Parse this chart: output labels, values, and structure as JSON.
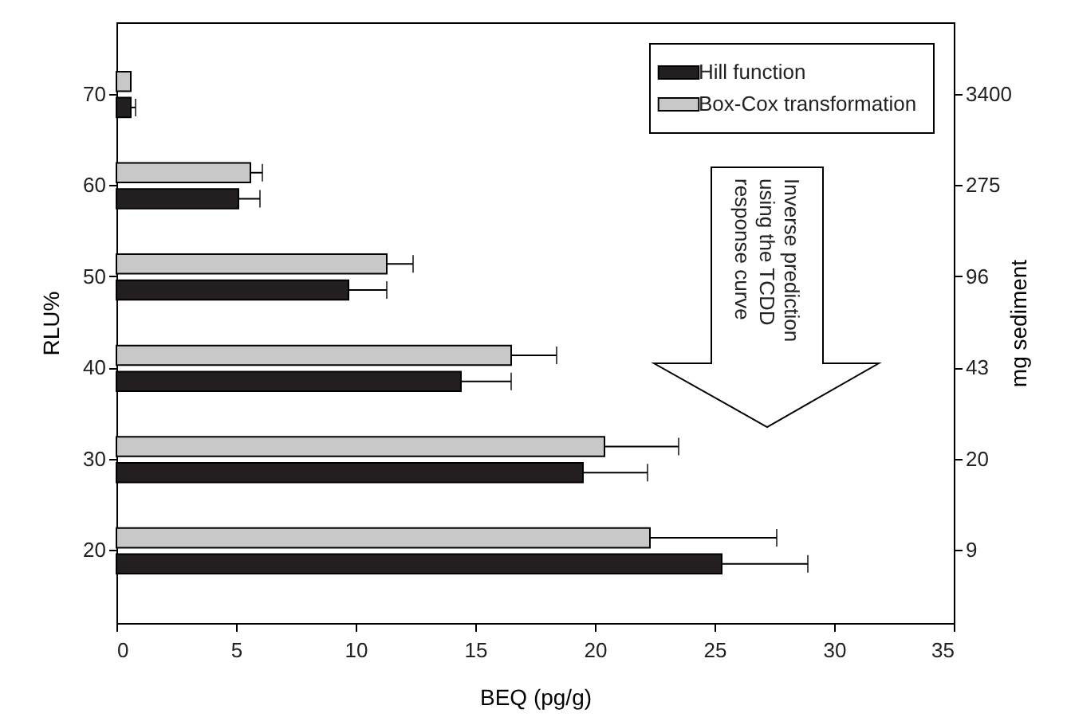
{
  "chart_data": {
    "type": "bar",
    "orientation": "horizontal",
    "categories": [
      "70",
      "60",
      "50",
      "40",
      "30",
      "20"
    ],
    "y2_categories": [
      "3400",
      "275",
      "96",
      "43",
      "20",
      "9"
    ],
    "xlim": [
      0,
      35
    ],
    "xticks": [
      0,
      5,
      10,
      15,
      20,
      25,
      30,
      35
    ],
    "xlabel": "BEQ (pg/g)",
    "ylabel": "RLU%",
    "y2label": "mg sediment",
    "legend": "top right",
    "annotations": [
      "Inverse prediction\nusing the TCDD\nresponse curve"
    ],
    "series": [
      {
        "name": "Hill function",
        "color": "#231f20",
        "values": [
          0.6,
          5.1,
          9.7,
          14.4,
          19.5,
          25.3
        ],
        "errors": [
          [
            0.6,
            0.8
          ],
          [
            5.1,
            6.0
          ],
          [
            9.7,
            11.3
          ],
          [
            14.4,
            16.5
          ],
          [
            19.5,
            22.2
          ],
          [
            25.3,
            28.9
          ]
        ]
      },
      {
        "name": "Box-Cox transformation",
        "color": "#c8c8c8",
        "values": [
          0.6,
          5.6,
          11.3,
          16.5,
          20.4,
          22.3
        ],
        "errors": [
          null,
          [
            5.6,
            6.1
          ],
          [
            11.3,
            12.4
          ],
          [
            16.5,
            18.4
          ],
          [
            20.4,
            23.5
          ],
          [
            22.3,
            27.6
          ]
        ]
      }
    ]
  }
}
